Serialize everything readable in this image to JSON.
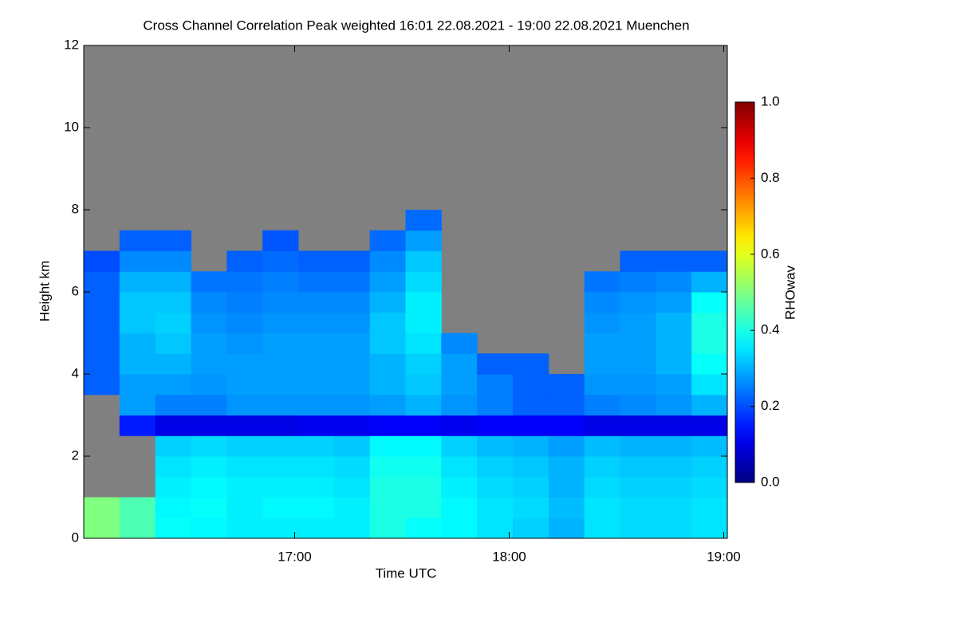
{
  "chart_data": {
    "type": "heatmap",
    "title": "Cross Channel Correlation Peak weighted   16:01 22.08.2021 - 19:00 22.08.2021 Muenchen",
    "xlabel": "Time UTC",
    "ylabel": "Height km",
    "xlim": [
      16.0167,
      19.0167
    ],
    "xticks": [
      {
        "value": 17,
        "label": "17:00"
      },
      {
        "value": 18,
        "label": "18:00"
      },
      {
        "value": 19,
        "label": "19:00"
      }
    ],
    "ylim": [
      0,
      12
    ],
    "yticks": [
      0,
      2,
      4,
      6,
      8,
      10,
      12
    ],
    "xbins": [
      16.0167,
      16.1833,
      16.35,
      16.5167,
      16.6833,
      16.85,
      17.0167,
      17.1833,
      17.35,
      17.5167,
      17.6833,
      17.85,
      18.0167,
      18.1833,
      18.35,
      18.5167,
      18.6833,
      18.85,
      19.0167
    ],
    "ybins": [
      0,
      0.5,
      1,
      1.5,
      2,
      2.5,
      3,
      3.5,
      4,
      4.5,
      5,
      5.5,
      6,
      6.5,
      7,
      7.5,
      8,
      8.5,
      9,
      9.5,
      10,
      10.5,
      11,
      11.5,
      12
    ],
    "missing_color": "#808080",
    "colormap": "jet",
    "values": [
      [
        0.5,
        0.45,
        0.38,
        0.37,
        0.36,
        0.36,
        0.36,
        0.36,
        0.4,
        0.38,
        0.37,
        0.35,
        0.33,
        0.3,
        0.35,
        0.34,
        0.34,
        0.35
      ],
      [
        0.5,
        0.45,
        0.37,
        0.38,
        0.36,
        0.37,
        0.37,
        0.36,
        0.4,
        0.4,
        0.37,
        0.35,
        0.34,
        0.31,
        0.35,
        0.34,
        0.34,
        0.35
      ],
      [
        null,
        null,
        0.36,
        0.37,
        0.36,
        0.36,
        0.36,
        0.35,
        0.4,
        0.4,
        0.36,
        0.34,
        0.33,
        0.3,
        0.34,
        0.33,
        0.33,
        0.34
      ],
      [
        null,
        null,
        0.35,
        0.36,
        0.35,
        0.35,
        0.35,
        0.34,
        0.39,
        0.39,
        0.35,
        0.33,
        0.32,
        0.3,
        0.33,
        0.32,
        0.32,
        0.33
      ],
      [
        null,
        null,
        0.33,
        0.34,
        0.33,
        0.33,
        0.33,
        0.32,
        0.37,
        0.37,
        0.33,
        0.31,
        0.3,
        0.28,
        0.31,
        0.3,
        0.3,
        0.31
      ],
      [
        null,
        0.15,
        0.1,
        0.1,
        0.1,
        0.1,
        0.11,
        0.11,
        0.12,
        0.12,
        0.11,
        0.12,
        0.12,
        0.12,
        0.1,
        0.1,
        0.1,
        0.1
      ],
      [
        null,
        0.28,
        0.25,
        0.25,
        0.27,
        0.27,
        0.27,
        0.27,
        0.28,
        0.3,
        0.27,
        0.25,
        0.22,
        0.22,
        0.25,
        0.26,
        0.27,
        0.3
      ],
      [
        0.22,
        0.28,
        0.28,
        0.27,
        0.28,
        0.28,
        0.28,
        0.28,
        0.3,
        0.32,
        0.28,
        0.25,
        0.22,
        0.22,
        0.27,
        0.27,
        0.28,
        0.35
      ],
      [
        0.22,
        0.3,
        0.3,
        0.28,
        0.28,
        0.28,
        0.28,
        0.28,
        0.3,
        0.33,
        0.28,
        0.22,
        0.22,
        null,
        0.28,
        0.28,
        0.3,
        0.38
      ],
      [
        0.22,
        0.3,
        0.32,
        0.28,
        0.27,
        0.28,
        0.28,
        0.28,
        0.32,
        0.35,
        0.26,
        null,
        null,
        null,
        0.28,
        0.28,
        0.3,
        0.4
      ],
      [
        0.22,
        0.32,
        0.33,
        0.27,
        0.26,
        0.27,
        0.27,
        0.27,
        0.32,
        0.36,
        null,
        null,
        null,
        null,
        0.27,
        0.28,
        0.3,
        0.4
      ],
      [
        0.22,
        0.32,
        0.32,
        0.26,
        0.25,
        0.26,
        0.26,
        0.26,
        0.3,
        0.36,
        null,
        null,
        null,
        null,
        0.26,
        0.27,
        0.28,
        0.38
      ],
      [
        0.22,
        0.3,
        0.3,
        0.24,
        0.24,
        0.25,
        0.24,
        0.24,
        0.28,
        0.34,
        null,
        null,
        null,
        null,
        0.24,
        0.25,
        0.26,
        0.3
      ],
      [
        0.2,
        0.26,
        0.26,
        null,
        0.22,
        0.23,
        0.22,
        0.22,
        0.26,
        0.32,
        null,
        null,
        null,
        null,
        null,
        0.22,
        0.22,
        0.22
      ],
      [
        null,
        0.22,
        0.22,
        null,
        null,
        0.21,
        null,
        null,
        0.23,
        0.28,
        null,
        null,
        null,
        null,
        null,
        null,
        null,
        null
      ],
      [
        null,
        null,
        null,
        null,
        null,
        null,
        null,
        null,
        null,
        0.23,
        null,
        null,
        null,
        null,
        null,
        null,
        null,
        null
      ],
      [
        null,
        null,
        null,
        null,
        null,
        null,
        null,
        null,
        null,
        null,
        null,
        null,
        null,
        null,
        null,
        null,
        null,
        null
      ],
      [
        null,
        null,
        null,
        null,
        null,
        null,
        null,
        null,
        null,
        null,
        null,
        null,
        null,
        null,
        null,
        null,
        null,
        null
      ],
      [
        null,
        null,
        null,
        null,
        null,
        null,
        null,
        null,
        null,
        null,
        null,
        null,
        null,
        null,
        null,
        null,
        null,
        null
      ],
      [
        null,
        null,
        null,
        null,
        null,
        null,
        null,
        null,
        null,
        null,
        null,
        null,
        null,
        null,
        null,
        null,
        null,
        null
      ],
      [
        null,
        null,
        null,
        null,
        null,
        null,
        null,
        null,
        null,
        null,
        null,
        null,
        null,
        null,
        null,
        null,
        null,
        null
      ],
      [
        null,
        null,
        null,
        null,
        null,
        null,
        null,
        null,
        null,
        null,
        null,
        null,
        null,
        null,
        null,
        null,
        null,
        null
      ],
      [
        null,
        null,
        null,
        null,
        null,
        null,
        null,
        null,
        null,
        null,
        null,
        null,
        null,
        null,
        null,
        null,
        null,
        null
      ],
      [
        null,
        null,
        null,
        null,
        null,
        null,
        null,
        null,
        null,
        null,
        null,
        null,
        null,
        null,
        null,
        null,
        null,
        null
      ]
    ],
    "colorbar": {
      "label": "RHOwav",
      "lim": [
        0,
        1
      ],
      "ticks": [
        {
          "value": 0,
          "label": "0.0"
        },
        {
          "value": 0.2,
          "label": "0.2"
        },
        {
          "value": 0.4,
          "label": "0.4"
        },
        {
          "value": 0.6,
          "label": "0.6"
        },
        {
          "value": 0.8,
          "label": "0.8"
        },
        {
          "value": 1,
          "label": "1.0"
        }
      ]
    }
  }
}
